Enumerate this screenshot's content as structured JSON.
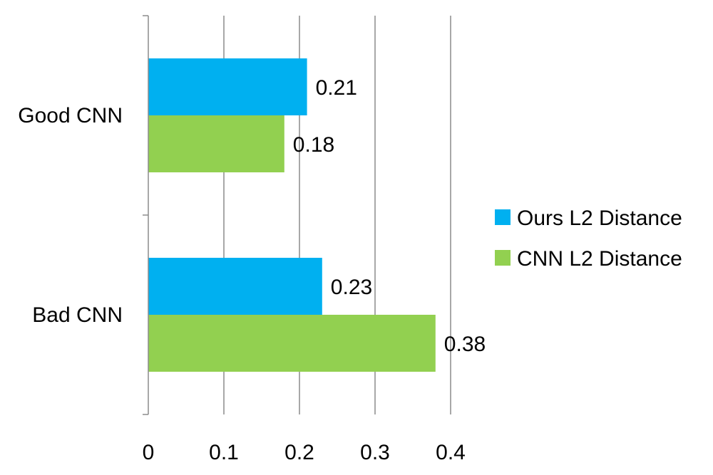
{
  "chart_data": {
    "type": "bar",
    "orientation": "horizontal",
    "categories": [
      "Good CNN",
      "Bad CNN"
    ],
    "series": [
      {
        "name": "Ours L2 Distance",
        "values": [
          0.21,
          0.23
        ],
        "color": "#00b0f0"
      },
      {
        "name": "CNN L2 Distance",
        "values": [
          0.18,
          0.38
        ],
        "color": "#92d050"
      }
    ],
    "data_labels": [
      [
        "0.21",
        "0.23"
      ],
      [
        "0.18",
        "0.38"
      ]
    ],
    "xlim": [
      0,
      0.4
    ],
    "xticks": [
      "0",
      "0.1",
      "0.2",
      "0.3",
      "0.4"
    ],
    "grid": true,
    "legend_position": "right"
  }
}
